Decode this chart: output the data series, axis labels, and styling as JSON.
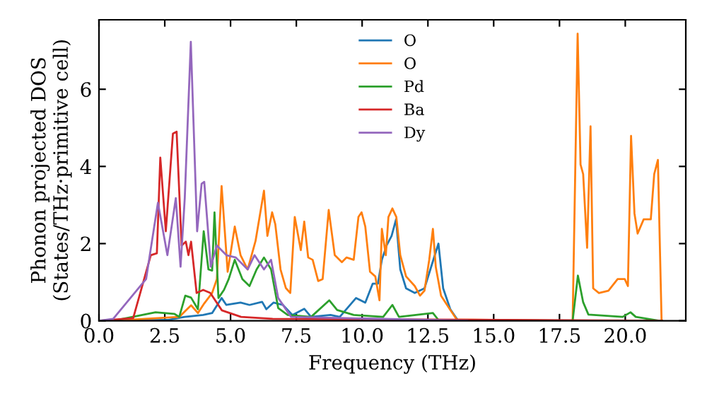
{
  "chart_data": {
    "type": "line",
    "xlabel": "Frequency (THz)",
    "ylabel": "Phonon projected DOS\n(States/THz·primitive cell)",
    "xlim": [
      0,
      22.3
    ],
    "ylim": [
      0,
      7.8
    ],
    "xticks": [
      {
        "value": 0,
        "label": "0.0"
      },
      {
        "value": 2.5,
        "label": "2.5"
      },
      {
        "value": 5,
        "label": "5.0"
      },
      {
        "value": 7.5,
        "label": "7.5"
      },
      {
        "value": 10,
        "label": "10.0"
      },
      {
        "value": 12.5,
        "label": "12.5"
      },
      {
        "value": 15,
        "label": "15.0"
      },
      {
        "value": 17.5,
        "label": "17.5"
      },
      {
        "value": 20,
        "label": "20.0"
      }
    ],
    "yticks": [
      0,
      2,
      4,
      6
    ],
    "grid": false,
    "legend": "top",
    "line_style": "solid",
    "marker": "none",
    "series": [
      {
        "name": "O",
        "color": "#1f77b4",
        "x": [
          0,
          2.6,
          3.26,
          3.96,
          4.3,
          4.66,
          4.84,
          5.38,
          5.72,
          6.2,
          6.36,
          6.63,
          6.99,
          7.35,
          7.8,
          8.06,
          8.8,
          9.15,
          9.77,
          10.12,
          10.4,
          10.6,
          10.75,
          10.93,
          11.12,
          11.29,
          11.45,
          11.67,
          12.0,
          12.37,
          12.62,
          12.9,
          13.08,
          13.35,
          13.65,
          18.0,
          21.4
        ],
        "values": [
          0,
          0.02,
          0.1,
          0.15,
          0.2,
          0.59,
          0.41,
          0.47,
          0.41,
          0.49,
          0.3,
          0.47,
          0.41,
          0.15,
          0.31,
          0.1,
          0.15,
          0.1,
          0.59,
          0.47,
          0.96,
          0.96,
          1.58,
          1.95,
          2.2,
          2.63,
          1.33,
          0.84,
          0.72,
          0.84,
          1.39,
          2.0,
          0.84,
          0.3,
          0,
          0,
          0
        ]
      },
      {
        "name": "O",
        "color": "#ff7f0e",
        "x": [
          0,
          1.3,
          3.05,
          3.5,
          3.76,
          4.0,
          4.3,
          4.48,
          4.66,
          4.89,
          5.16,
          5.38,
          5.65,
          5.95,
          6.27,
          6.4,
          6.58,
          6.7,
          6.9,
          7.1,
          7.27,
          7.44,
          7.67,
          7.8,
          7.95,
          8.12,
          8.33,
          8.5,
          8.73,
          8.96,
          9.23,
          9.41,
          9.68,
          9.86,
          9.98,
          10.12,
          10.3,
          10.5,
          10.66,
          10.75,
          10.9,
          11.0,
          11.15,
          11.3,
          11.45,
          11.67,
          12.0,
          12.2,
          12.37,
          12.55,
          12.69,
          12.8,
          13.0,
          13.35,
          13.6,
          18.0,
          18.19,
          18.3,
          18.4,
          18.55,
          18.68,
          18.78,
          19.0,
          19.36,
          19.71,
          19.98,
          20.1,
          20.22,
          20.35,
          20.47,
          20.7,
          20.97,
          21.1,
          21.24,
          21.38
        ],
        "values": [
          0,
          0.03,
          0.1,
          0.4,
          0.2,
          0.45,
          0.72,
          1.08,
          3.49,
          1.27,
          2.44,
          1.7,
          1.33,
          2.07,
          3.37,
          2.2,
          2.81,
          2.5,
          1.33,
          0.85,
          0.72,
          2.69,
          1.83,
          2.57,
          1.64,
          1.58,
          1.03,
          1.08,
          2.87,
          1.7,
          1.52,
          1.64,
          1.58,
          2.69,
          2.81,
          2.44,
          1.27,
          1.15,
          0.53,
          2.38,
          1.7,
          2.69,
          2.91,
          2.69,
          1.7,
          1.15,
          0.9,
          0.65,
          0.78,
          1.58,
          2.38,
          1.39,
          0.65,
          0.28,
          0.03,
          0,
          7.44,
          4.05,
          3.8,
          1.89,
          5.04,
          0.84,
          0.72,
          0.78,
          1.08,
          1.08,
          0.9,
          4.79,
          2.78,
          2.26,
          2.63,
          2.63,
          3.8,
          4.17,
          0
        ]
      },
      {
        "name": "Pd",
        "color": "#2ca02c",
        "x": [
          0,
          0.54,
          2.15,
          2.86,
          3.05,
          3.28,
          3.5,
          3.76,
          3.98,
          4.16,
          4.3,
          4.39,
          4.54,
          4.75,
          4.93,
          5.16,
          5.45,
          5.72,
          5.99,
          6.27,
          6.54,
          6.81,
          7.17,
          8.06,
          8.75,
          9.05,
          9.68,
          10.8,
          11.15,
          11.4,
          12.69,
          12.9,
          13.5,
          18.0,
          18.2,
          18.4,
          18.6,
          19.9,
          20.2,
          20.4,
          21.3
        ],
        "values": [
          0,
          0,
          0.22,
          0.18,
          0.1,
          0.65,
          0.6,
          0.3,
          2.32,
          1.33,
          1.3,
          2.81,
          0.59,
          0.8,
          1.08,
          1.58,
          1.08,
          0.9,
          1.33,
          1.64,
          1.33,
          0.33,
          0.15,
          0.1,
          0.53,
          0.28,
          0.15,
          0.1,
          0.41,
          0.1,
          0.2,
          0.02,
          0,
          0,
          1.17,
          0.48,
          0.16,
          0.1,
          0.22,
          0.1,
          0
        ]
      },
      {
        "name": "Ba",
        "color": "#d62728",
        "x": [
          0,
          1.3,
          1.97,
          2.2,
          2.33,
          2.54,
          2.81,
          2.95,
          3.14,
          3.3,
          3.4,
          3.5,
          3.71,
          3.96,
          4.23,
          4.67,
          5.4,
          6.6,
          21.4
        ],
        "values": [
          0,
          0.07,
          1.7,
          1.75,
          4.23,
          2.32,
          4.85,
          4.9,
          1.95,
          2.05,
          1.7,
          2.05,
          0.72,
          0.8,
          0.72,
          0.27,
          0.1,
          0.05,
          0
        ]
      },
      {
        "name": "Dy",
        "color": "#9467bd",
        "x": [
          0,
          0.54,
          1.79,
          2.24,
          2.6,
          2.92,
          3.1,
          3.26,
          3.49,
          3.73,
          3.9,
          4.0,
          4.25,
          4.48,
          4.84,
          5.2,
          5.65,
          5.91,
          6.27,
          6.54,
          6.81,
          7.3,
          14.0
        ],
        "values": [
          0,
          0.05,
          1.08,
          3.06,
          1.7,
          3.18,
          1.4,
          3.18,
          7.23,
          2.32,
          3.55,
          3.6,
          1.4,
          1.95,
          1.7,
          1.64,
          1.33,
          1.7,
          1.33,
          1.58,
          0.59,
          0.1,
          0
        ]
      }
    ]
  }
}
